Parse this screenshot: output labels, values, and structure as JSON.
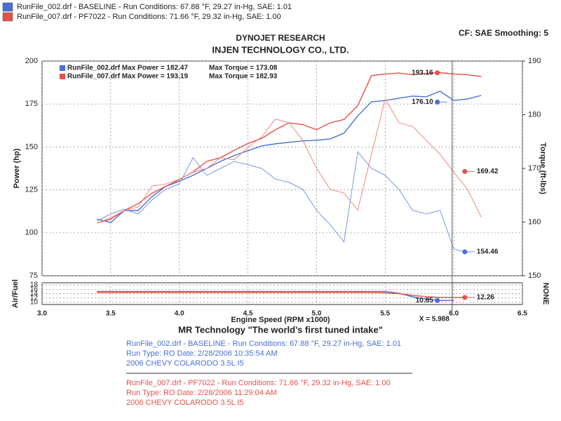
{
  "header": {
    "runs": [
      {
        "text": "RunFile_002.drf - BASELINE  -  Run Conditions: 67.88 °F, 29.27 in-Hg, SAE: 1.01",
        "color": "#4a6fd6"
      },
      {
        "text": "RunFile_007.drf - PF7022  -  Run Conditions: 71.66 °F, 29.32 in-Hg, SAE: 1.00",
        "color": "#e8504a"
      }
    ],
    "company": "DYNOJET RESEARCH",
    "customer": "INJEN TECHNOLOGY CO., LTD.",
    "settings": "CF: SAE  Smoothing: 5"
  },
  "chart_data": [
    {
      "type": "line",
      "xlabel": "Engine Speed (RPM x1000)",
      "ylabel": "Power (hp)",
      "y2label": "Torque (ft-lbs)",
      "xlim": [
        3,
        6.5
      ],
      "xticks": [
        {
          "value": 3,
          "label": "3.0"
        },
        3.5,
        {
          "value": 4,
          "label": "4.0"
        },
        4.5,
        {
          "value": 5,
          "label": "5.0"
        },
        5.5,
        {
          "value": 6,
          "label": "6.0"
        },
        6.5
      ],
      "ylim": [
        75,
        200
      ],
      "yticks": [
        75,
        100,
        125,
        150,
        175,
        200
      ],
      "y2lim": [
        150,
        190
      ],
      "y2ticks": [
        150,
        160,
        170,
        180,
        190
      ],
      "grid": true,
      "x": [
        3.4,
        3.5,
        3.6,
        3.7,
        3.8,
        3.9,
        4.0,
        4.1,
        4.2,
        4.3,
        4.4,
        4.5,
        4.6,
        4.7,
        4.8,
        4.9,
        5.0,
        5.1,
        5.2,
        5.3,
        5.4,
        5.5,
        5.6,
        5.7,
        5.8,
        5.9,
        6.0,
        6.1,
        6.2
      ],
      "series": [
        {
          "name": "RunFile_002.drf Max Power = 182.47",
          "color": "#4a6fd6",
          "values": [
            108,
            106,
            113,
            113,
            121,
            127,
            130,
            133.5,
            137.5,
            141.6,
            145,
            147.8,
            150.6,
            151.8,
            152.7,
            153.5,
            153.9,
            154.7,
            158,
            168,
            176.3,
            177,
            178.4,
            179.6,
            179.2,
            182.47,
            177,
            178,
            180
          ]
        },
        {
          "name": "Max Torque = 173.08",
          "color": "#7a96e0",
          "axis": "y2",
          "values": [
            160.2,
            161.5,
            162.4,
            161.5,
            164.1,
            166.1,
            167.1,
            172,
            168.7,
            170,
            171.3,
            170.7,
            170,
            168,
            167.4,
            166.1,
            162.2,
            159.5,
            156.3,
            173.08,
            170,
            168.7,
            166.1,
            162.2,
            161.5,
            162.2,
            155,
            154.3,
            null
          ]
        },
        {
          "name": "RunFile_007.drf Max Power = 193.19",
          "color": "#e8504a",
          "values": [
            105.7,
            108,
            113,
            117,
            123,
            127,
            131,
            135.5,
            141.6,
            143.7,
            148,
            152,
            155,
            160,
            164,
            163,
            160,
            164,
            166,
            174,
            191.5,
            192.5,
            193.0,
            192.0,
            192.8,
            193.19,
            192.5,
            192,
            191
          ]
        },
        {
          "name": "Max Torque = 182.93",
          "color": "#f08a80",
          "axis": "y2",
          "values": [
            159.8,
            160.8,
            162.2,
            162.8,
            166.7,
            167.1,
            168,
            169.3,
            170,
            172,
            171.6,
            173.9,
            175.9,
            179.2,
            178.5,
            175.2,
            170,
            166.1,
            165.4,
            162.2,
            172.6,
            182.93,
            178.5,
            177.8,
            175.2,
            172.6,
            169.3,
            166.1,
            160.9
          ]
        }
      ],
      "markers": [
        {
          "x": 5.88,
          "value": 193.16,
          "color": "#e8504a",
          "axis": "y"
        },
        {
          "x": 5.88,
          "value": 176.1,
          "label": "176.10",
          "color": "#4a6fd6",
          "axis": "y"
        },
        {
          "x": 6.08,
          "value": 169.42,
          "color": "#e8504a",
          "axis": "y2"
        },
        {
          "x": 6.08,
          "value": 154.46,
          "color": "#4a6fd6",
          "axis": "y2"
        }
      ],
      "cursor": {
        "value": 5.988,
        "label": "X = 5.988"
      }
    },
    {
      "type": "line",
      "ylabel": "Air/Fuel",
      "y2label": "NONE",
      "xlim": [
        3,
        6.5
      ],
      "ylim": [
        9,
        19
      ],
      "yticks": [
        10,
        12,
        14,
        16,
        18
      ],
      "x": [
        3.4,
        3.6,
        3.8,
        4.0,
        4.2,
        4.4,
        4.6,
        4.8,
        5.0,
        5.2,
        5.4,
        5.5,
        5.6,
        5.7,
        5.8,
        5.9,
        6.0,
        6.1
      ],
      "series": [
        {
          "color": "#4a6fd6",
          "values": [
            15,
            15,
            15,
            15,
            15,
            15,
            15,
            15,
            15,
            15,
            15,
            15,
            14.2,
            12.5,
            11.5,
            10.85,
            10.9,
            null
          ]
        },
        {
          "color": "#e8504a",
          "values": [
            14.5,
            14.5,
            14.5,
            14.5,
            14.5,
            14.5,
            14.5,
            14.5,
            14.5,
            14.5,
            14.5,
            14.4,
            14,
            13.2,
            12.6,
            12.3,
            12.26,
            12.26
          ]
        }
      ],
      "markers": [
        {
          "x": 5.88,
          "value": 10.85,
          "color": "#4a6fd6"
        },
        {
          "x": 6.08,
          "value": 12.26,
          "color": "#e8504a"
        }
      ]
    }
  ],
  "footer": {
    "tagline": "MR Technology \"The world's first tuned intake\"",
    "runs": [
      {
        "color": "#4a6fd6",
        "lines": [
          "RunFile_002.drf - BASELINE  -  Run Conditions: 67.88 °F, 29.27 in-Hg, SAE: 1.01",
          "Run Type: RO  Date: 2/28/2006 10:35:54 AM",
          "2006 CHEVY COLARODO 3.5L I5"
        ]
      },
      {
        "color": "#e8504a",
        "lines": [
          "RunFile_007.drf - PF7022  -  Run Conditions: 71.66 °F, 29.32 in-Hg, SAE: 1.00",
          "Run Type: RO  Date: 2/28/2006 11:29:04 AM",
          "2006 CHEVY COLARODO 3.5L I5"
        ]
      }
    ]
  }
}
